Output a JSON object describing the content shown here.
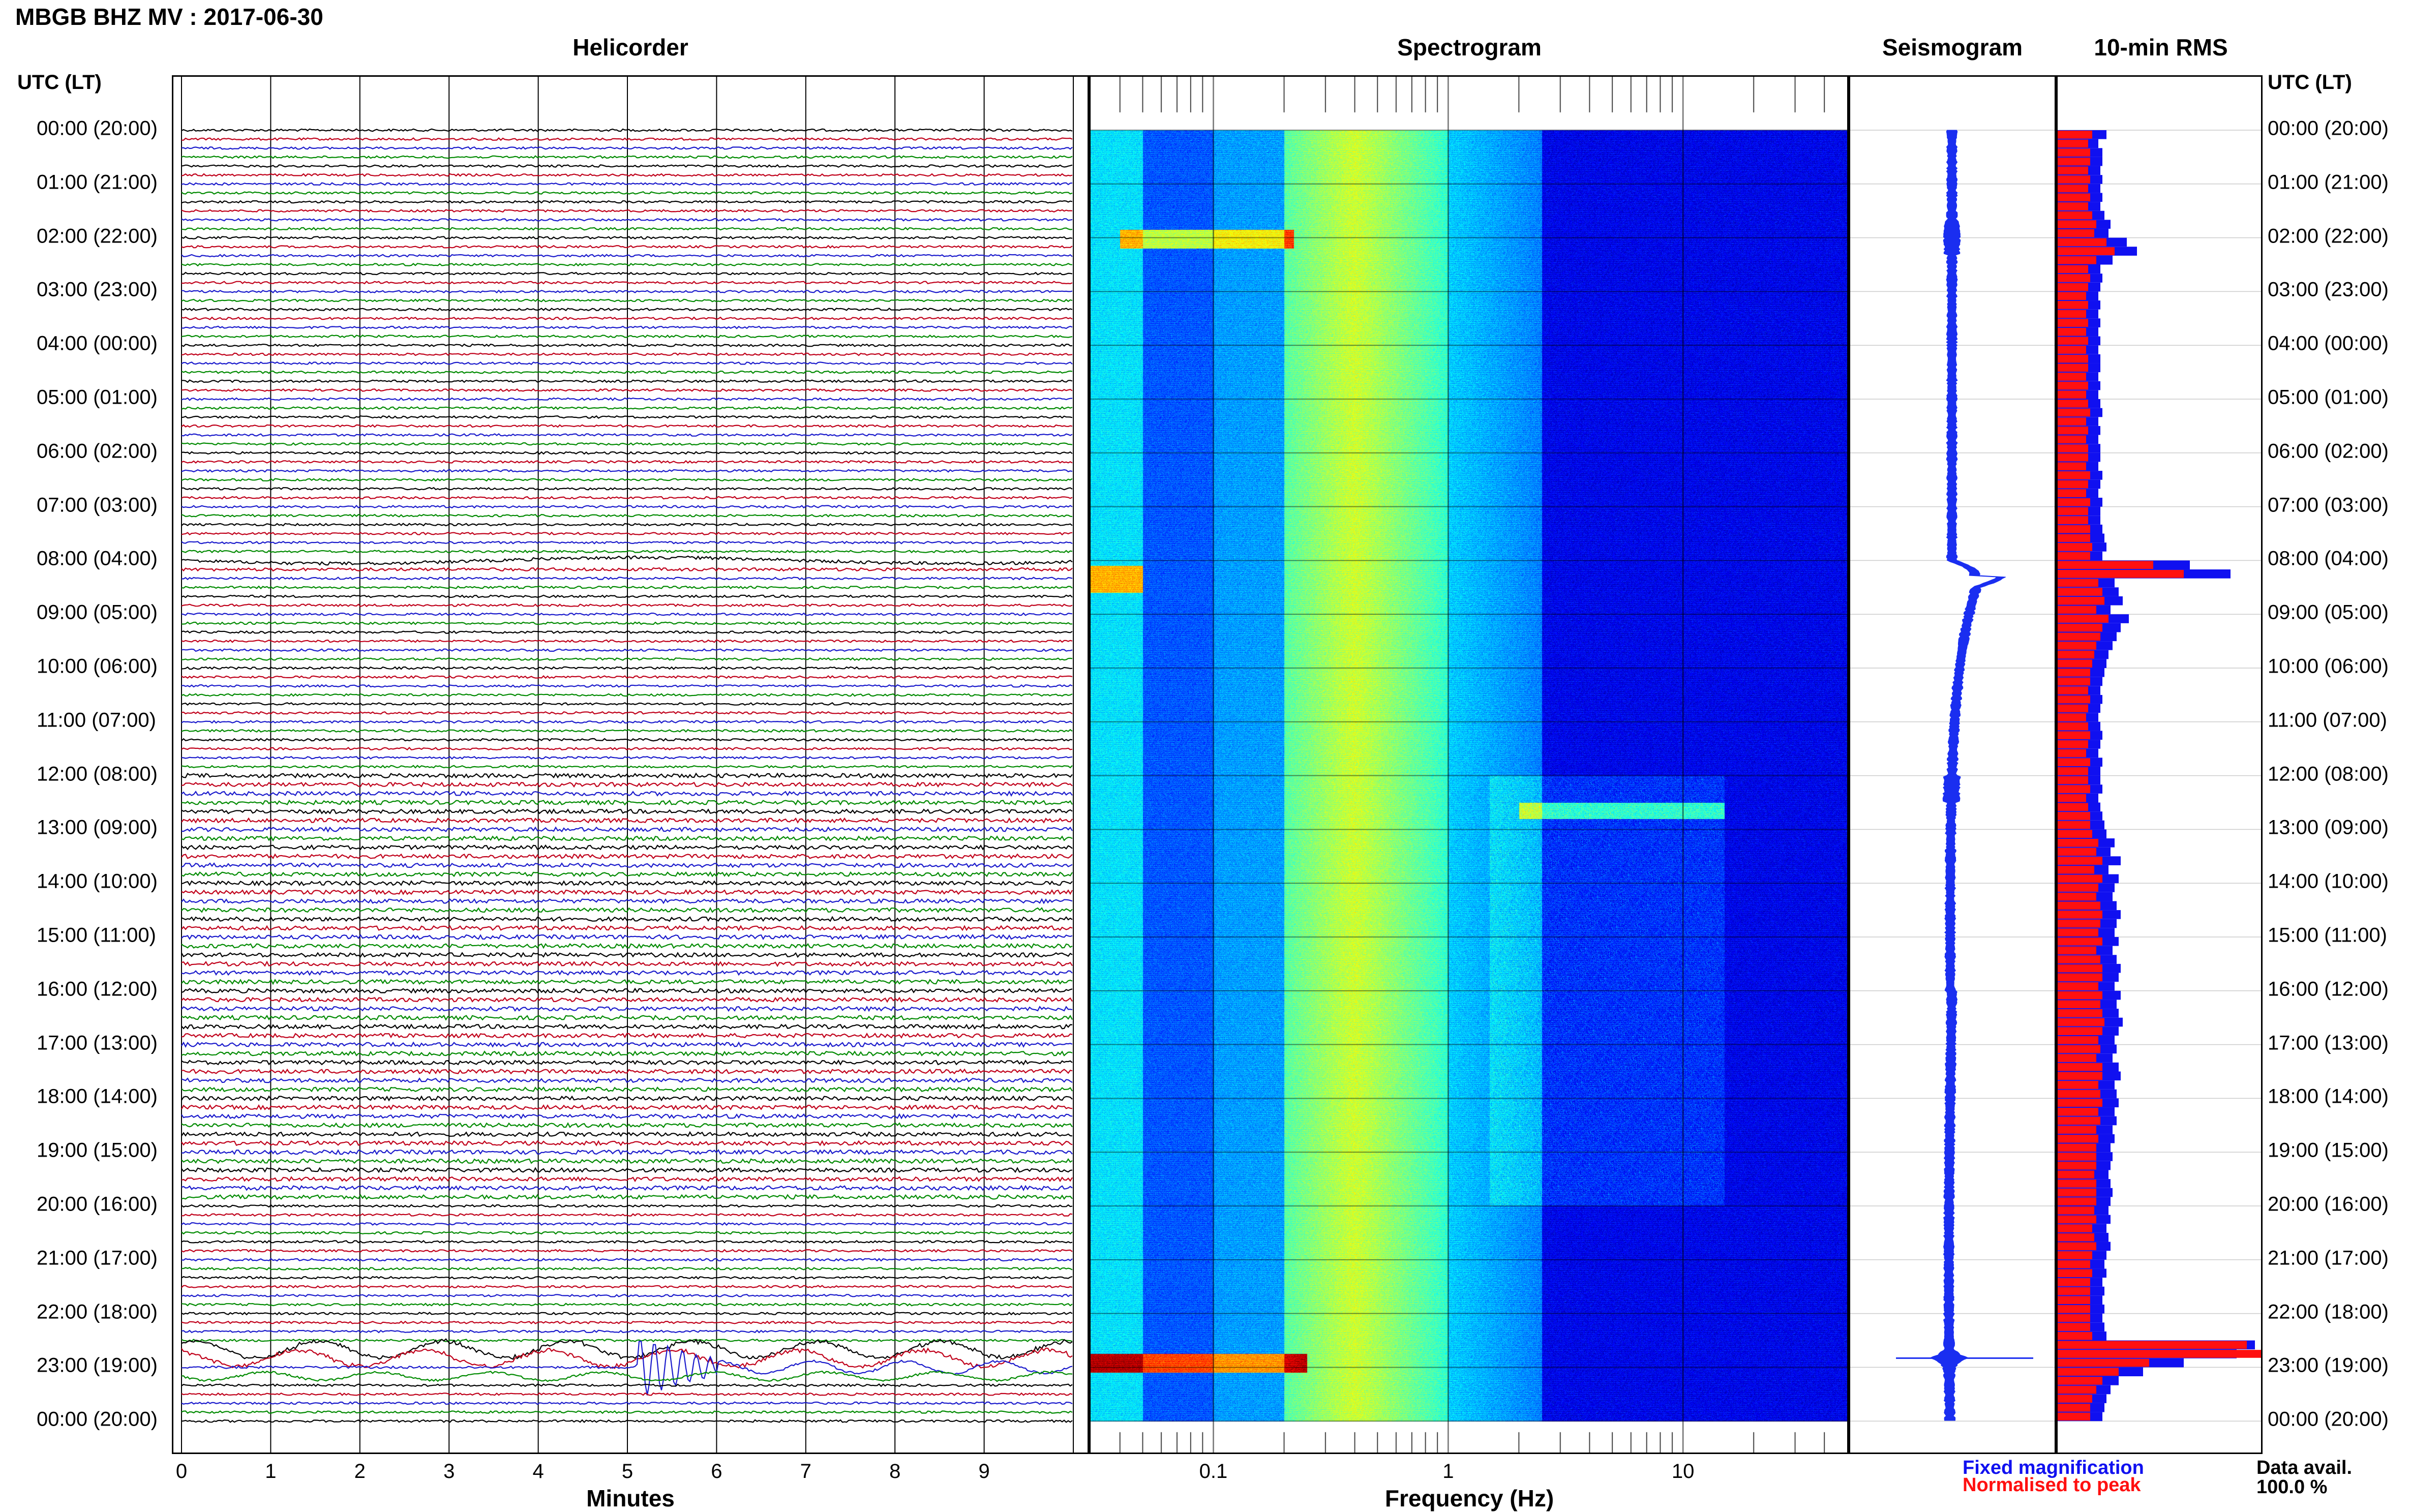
{
  "page": {
    "title": "MBGB BHZ MV : 2017-06-30",
    "utc_header": "UTC (LT)"
  },
  "panels": {
    "helicorder": "Helicorder",
    "spectrogram": "Spectrogram",
    "seismogram": "Seismogram",
    "rms": "10-min RMS"
  },
  "time_labels": [
    "00:00 (20:00)",
    "01:00 (21:00)",
    "02:00 (22:00)",
    "03:00 (23:00)",
    "04:00 (00:00)",
    "05:00 (01:00)",
    "06:00 (02:00)",
    "07:00 (03:00)",
    "08:00 (04:00)",
    "09:00 (05:00)",
    "10:00 (06:00)",
    "11:00 (07:00)",
    "12:00 (08:00)",
    "13:00 (09:00)",
    "14:00 (10:00)",
    "15:00 (11:00)",
    "16:00 (12:00)",
    "17:00 (13:00)",
    "18:00 (14:00)",
    "19:00 (15:00)",
    "20:00 (16:00)",
    "21:00 (17:00)",
    "22:00 (18:00)",
    "23:00 (19:00)",
    "00:00 (20:00)"
  ],
  "x_axes": {
    "helicorder_ticks": [
      "0",
      "1",
      "2",
      "3",
      "4",
      "5",
      "6",
      "7",
      "8",
      "9"
    ],
    "helicorder_title": "Minutes",
    "spectrogram_ticks": [
      "0.1",
      "1",
      "10"
    ],
    "spectrogram_title": "Frequency (Hz)"
  },
  "legend": {
    "fixed": "Fixed magnification",
    "normalised": "Normalised to peak",
    "avail_label": "Data avail.",
    "avail_value": "100.0 %"
  },
  "colors": {
    "trace_black": "#000000",
    "trace_red": "#c0001a",
    "trace_blue": "#1a1acc",
    "trace_green": "#008a00",
    "rms_fixed": "#1010f0",
    "rms_norm": "#ff1010",
    "seis_trace": "#1a2ef0"
  },
  "chart_data": {
    "type": "helicorder",
    "station": "MBGB",
    "channel": "BHZ",
    "network": "MV",
    "date": "2017-06-30",
    "helicorder": {
      "xlim": [
        0,
        10
      ],
      "xlabel": "Minutes",
      "row_minutes": 10,
      "rows": 144,
      "trace_color_cycle": [
        "black",
        "red",
        "blue",
        "green"
      ],
      "events": [
        {
          "utc": "22:50",
          "minute_start": 5.1,
          "minute_end": 6.0,
          "note": "largest signal, green trace"
        },
        {
          "utc": "22:40",
          "minute_start": 0.0,
          "minute_end": 10.0,
          "note": "elevated long-period oscillation"
        },
        {
          "utc": "08:00",
          "minute_start": 0.0,
          "minute_end": 10.0,
          "note": "long-period drift"
        }
      ]
    },
    "spectrogram": {
      "x_scale": "log",
      "xlim": [
        0.03,
        50
      ],
      "xlabel": "Frequency (Hz)",
      "tick_labels": [
        "0.1",
        "1",
        "10"
      ],
      "colormap": "jet",
      "features": [
        {
          "utc": "02:00",
          "freq_hz": [
            0.06,
            0.2
          ],
          "level": "yellow"
        },
        {
          "utc": "08:15",
          "freq_hz": [
            0.03,
            0.05
          ],
          "level": "yellow"
        },
        {
          "utc": "12:30",
          "freq_hz": [
            1,
            15
          ],
          "level": "cyan"
        },
        {
          "utc": "22:50",
          "freq_hz": [
            0.03,
            0.25
          ],
          "level": "red"
        }
      ]
    },
    "seismogram": {
      "features": [
        {
          "utc": "08:00",
          "note": "long-period bump"
        },
        {
          "utc": "22:50",
          "note": "spike, largest amplitude"
        }
      ]
    },
    "rms_10min": {
      "bins": 144,
      "series": [
        {
          "name": "Fixed magnification",
          "color": "blue",
          "values": [
            0.24,
            0.2,
            0.22,
            0.22,
            0.21,
            0.22,
            0.21,
            0.22,
            0.21,
            0.23,
            0.26,
            0.25,
            0.34,
            0.39,
            0.27,
            0.21,
            0.22,
            0.21,
            0.2,
            0.21,
            0.2,
            0.21,
            0.2,
            0.21,
            0.2,
            0.21,
            0.21,
            0.2,
            0.21,
            0.2,
            0.21,
            0.22,
            0.2,
            0.21,
            0.2,
            0.21,
            0.21,
            0.2,
            0.22,
            0.21,
            0.2,
            0.22,
            0.21,
            0.21,
            0.22,
            0.23,
            0.24,
            0.22,
            0.65,
            0.85,
            0.28,
            0.3,
            0.32,
            0.26,
            0.35,
            0.31,
            0.29,
            0.27,
            0.25,
            0.24,
            0.23,
            0.22,
            0.21,
            0.22,
            0.21,
            0.2,
            0.21,
            0.22,
            0.21,
            0.2,
            0.22,
            0.21,
            0.21,
            0.22,
            0.2,
            0.21,
            0.22,
            0.23,
            0.24,
            0.28,
            0.26,
            0.31,
            0.25,
            0.3,
            0.28,
            0.27,
            0.29,
            0.31,
            0.29,
            0.28,
            0.3,
            0.27,
            0.29,
            0.31,
            0.3,
            0.28,
            0.31,
            0.29,
            0.3,
            0.32,
            0.3,
            0.28,
            0.29,
            0.27,
            0.3,
            0.31,
            0.28,
            0.29,
            0.3,
            0.28,
            0.29,
            0.27,
            0.28,
            0.26,
            0.27,
            0.26,
            0.25,
            0.26,
            0.27,
            0.26,
            0.25,
            0.26,
            0.24,
            0.25,
            0.26,
            0.24,
            0.23,
            0.24,
            0.22,
            0.23,
            0.22,
            0.23,
            0.22,
            0.23,
            0.24,
            0.97,
            0.88,
            0.62,
            0.42,
            0.3,
            0.26,
            0.24,
            0.23,
            0.22
          ],
          "unit": "fraction of panel width"
        },
        {
          "name": "Normalised to peak",
          "color": "red",
          "values": [
            0.17,
            0.15,
            0.16,
            0.16,
            0.15,
            0.16,
            0.15,
            0.16,
            0.15,
            0.17,
            0.19,
            0.18,
            0.24,
            0.28,
            0.19,
            0.15,
            0.16,
            0.15,
            0.14,
            0.15,
            0.14,
            0.15,
            0.14,
            0.15,
            0.14,
            0.15,
            0.15,
            0.14,
            0.15,
            0.14,
            0.15,
            0.16,
            0.14,
            0.15,
            0.14,
            0.15,
            0.15,
            0.14,
            0.16,
            0.15,
            0.14,
            0.16,
            0.15,
            0.15,
            0.16,
            0.16,
            0.17,
            0.16,
            0.47,
            0.62,
            0.2,
            0.22,
            0.23,
            0.19,
            0.25,
            0.22,
            0.21,
            0.19,
            0.18,
            0.17,
            0.16,
            0.16,
            0.15,
            0.16,
            0.15,
            0.14,
            0.15,
            0.16,
            0.15,
            0.14,
            0.16,
            0.15,
            0.15,
            0.16,
            0.14,
            0.15,
            0.16,
            0.16,
            0.17,
            0.2,
            0.19,
            0.22,
            0.18,
            0.22,
            0.2,
            0.19,
            0.21,
            0.22,
            0.21,
            0.2,
            0.22,
            0.19,
            0.21,
            0.22,
            0.22,
            0.2,
            0.22,
            0.21,
            0.22,
            0.23,
            0.22,
            0.2,
            0.21,
            0.19,
            0.22,
            0.22,
            0.2,
            0.21,
            0.22,
            0.2,
            0.21,
            0.19,
            0.2,
            0.19,
            0.19,
            0.19,
            0.18,
            0.19,
            0.19,
            0.19,
            0.18,
            0.19,
            0.17,
            0.18,
            0.19,
            0.17,
            0.16,
            0.17,
            0.16,
            0.16,
            0.16,
            0.16,
            0.16,
            0.16,
            0.17,
            0.93,
            1.0,
            0.45,
            0.3,
            0.22,
            0.19,
            0.17,
            0.16,
            0.16
          ],
          "unit": "fraction of panel width"
        }
      ]
    }
  }
}
